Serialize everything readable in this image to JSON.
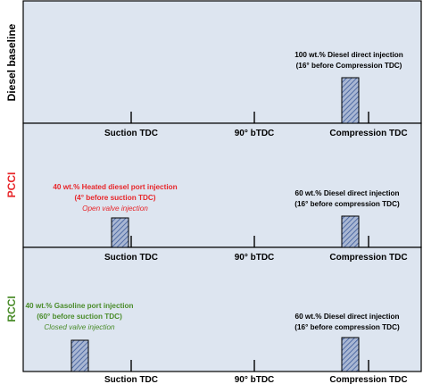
{
  "colors": {
    "panel_fill": "#dde5f0",
    "border": "#000000",
    "diesel_label": "#000000",
    "pcci_label": "#e8262a",
    "rcci_label": "#4a8c2a",
    "pcci_annotation": "#e8262a",
    "rcci_annotation": "#4a8c2a",
    "bar_fill": "#a9b7d3",
    "bar_hatch": "#3b5a9a"
  },
  "ticks": {
    "suction": "Suction TDC",
    "bdc90": "90° bTDC",
    "compression": "Compression TDC"
  },
  "rows": {
    "diesel": {
      "label": "Diesel baseline",
      "di_line1": "100 wt.% Diesel direct injection",
      "di_line2": "(16° before Compression TDC)"
    },
    "pcci": {
      "label": "PCCI",
      "port_line1": "40 wt.% Heated diesel port injection",
      "port_line2": "(4° before suction TDC)",
      "port_line3": "Open valve injection",
      "di_line1": "60 wt.% Diesel direct injection",
      "di_line2": "(16° before compression TDC)"
    },
    "rcci": {
      "label": "RCCI",
      "port_line1": "40 wt.% Gasoline port injection",
      "port_line2": "(60° before suction TDC)",
      "port_line3": "Closed valve injection",
      "di_line1": "60 wt.% Diesel direct injection",
      "di_line2": "(16° before compression TDC)"
    }
  }
}
